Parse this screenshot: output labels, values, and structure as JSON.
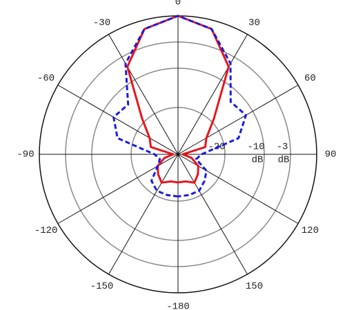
{
  "chart_data": {
    "type": "polar",
    "theta": [
      -180,
      -165,
      -150,
      -135,
      -120,
      -105,
      -90,
      -75,
      -60,
      -45,
      -30,
      -15,
      0,
      15,
      30,
      45,
      60,
      75,
      90,
      105,
      120,
      135,
      150,
      165,
      180
    ],
    "series": [
      {
        "color": "#e8141c",
        "dash": "solid",
        "values": [
          -24,
          -24,
          -23,
          -24,
          -25,
          -27,
          -29,
          -24,
          -23,
          -19,
          -6,
          -1,
          0,
          -1,
          -6,
          -19,
          -23,
          -24,
          -29,
          -27,
          -25,
          -24,
          -23,
          -24,
          -24
        ]
      },
      {
        "color": "#1a1ae0",
        "dash": "dashed",
        "values": [
          -21,
          -21,
          -21,
          -22,
          -25,
          -26,
          -25,
          -16,
          -13,
          -14,
          -5,
          -1,
          0,
          -1,
          -5,
          -13,
          -12,
          -16,
          -25,
          -26,
          -23,
          -22,
          -21,
          -21,
          -21
        ]
      }
    ],
    "thetaticks": [
      0,
      30,
      60,
      90,
      120,
      150,
      -180,
      -150,
      -120,
      -90,
      -60,
      -30
    ],
    "rlim": [
      -30,
      0
    ],
    "rticks": [
      -20,
      -10,
      -3
    ],
    "r_unit": "dB"
  }
}
